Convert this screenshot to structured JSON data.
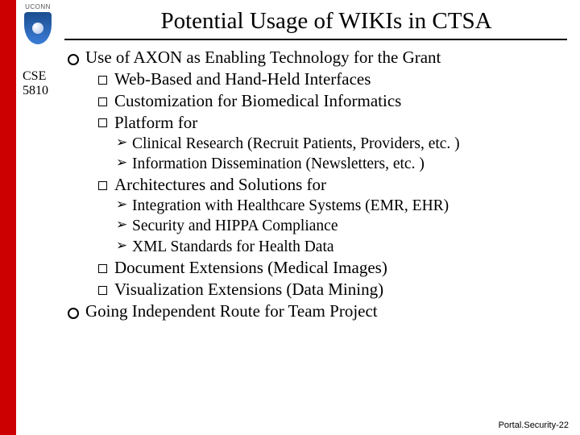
{
  "branding": {
    "org_word": "UCONN",
    "course_code_line1": "CSE",
    "course_code_line2": "5810"
  },
  "title": "Potential Usage of WIKIs in CTSA",
  "bullets": {
    "l1_0": "Use of AXON as Enabling Technology for the Grant",
    "l2_0": "Web-Based and Hand-Held Interfaces",
    "l2_1": "Customization for Biomedical Informatics",
    "l2_2": "Platform for",
    "l3_0": "Clinical Research (Recruit Patients, Providers, etc. )",
    "l3_1": "Information Dissemination (Newsletters, etc. )",
    "l2_3": "Architectures and Solutions for",
    "l3_2": "Integration with Healthcare Systems (EMR, EHR)",
    "l3_3": "Security and HIPPA Compliance",
    "l3_4": "XML Standards for Health Data",
    "l2_4": "Document Extensions (Medical Images)",
    "l2_5": "Visualization Extensions (Data Mining)",
    "l1_1": "Going Independent Route for Team Project"
  },
  "footer": "Portal.Security-22",
  "colors": {
    "accent_bar": "#cc0000",
    "text": "#000000",
    "background": "#ffffff"
  }
}
